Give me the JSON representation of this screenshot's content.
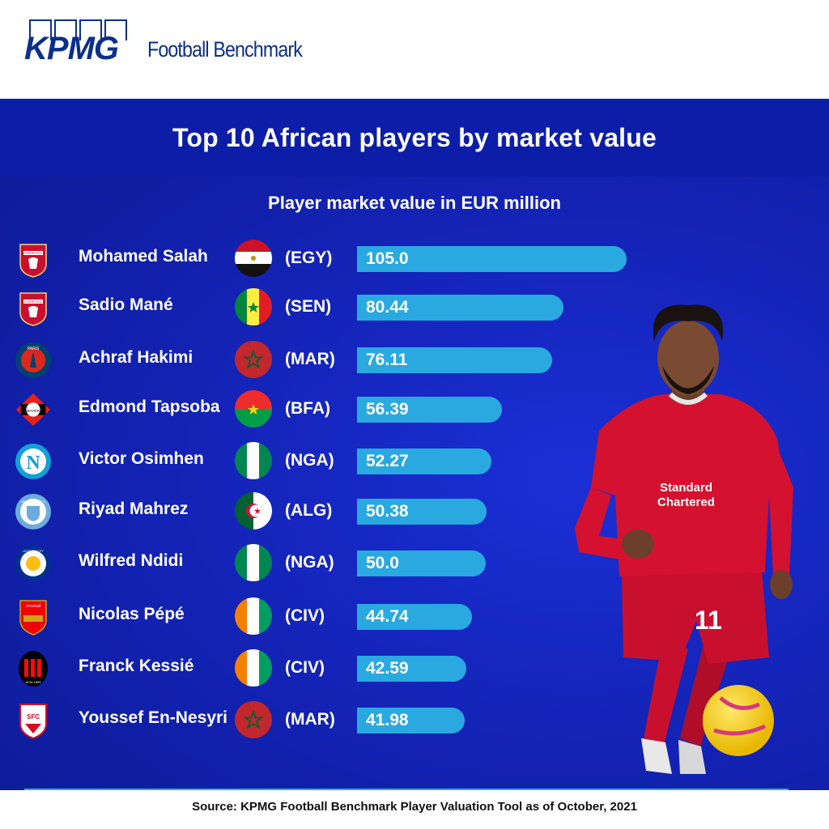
{
  "header": {
    "logo_text": "KPMG",
    "brand_sub": "Football Benchmark"
  },
  "chart_data": {
    "type": "bar",
    "title": "Top 10 African players by market value",
    "subtitle": "Player market value in EUR million",
    "categories": [
      "Mohamed Salah",
      "Sadio Mané",
      "Achraf Hakimi",
      "Edmond Tapsoba",
      "Victor Osimhen",
      "Riyad Mahrez",
      "Wilfred Ndidi",
      "Nicolas Pépé",
      "Franck Kessié",
      "Youssef En-Nesyri"
    ],
    "countries": [
      "(EGY)",
      "(SEN)",
      "(MAR)",
      "(BFA)",
      "(NGA)",
      "(ALG)",
      "(NGA)",
      "(CIV)",
      "(CIV)",
      "(MAR)"
    ],
    "values": [
      105.0,
      80.44,
      76.11,
      56.39,
      52.27,
      50.38,
      50.0,
      44.74,
      42.59,
      41.98
    ],
    "value_labels": [
      "105.0",
      "80.44",
      "76.11",
      "56.39",
      "52.27",
      "50.38",
      "50.0",
      "44.74",
      "42.59",
      "41.98"
    ],
    "clubs": [
      "liverpool",
      "liverpool",
      "psg",
      "leverkusen",
      "napoli",
      "man-city",
      "leicester",
      "arsenal",
      "ac-milan",
      "sevilla"
    ],
    "bar_color": "#29a9e0",
    "xlim": [
      0,
      105.0
    ]
  },
  "crest_texts": {
    "liverpool": "LIVERPOOL",
    "psg": "PARIS",
    "leverkusen": "BAYER",
    "napoli": "N",
    "man-city": "MANCHESTER CITY",
    "leicester": "LEICESTER CITY",
    "arsenal": "Arsenal",
    "ac-milan": "ACM 1899",
    "sevilla": "SFC"
  },
  "source": "Source: KPMG Football Benchmark Player Valuation Tool as of October, 2021",
  "colors": {
    "panel": "#1424b8",
    "title_band": "#0c1ea8",
    "brand": "#0b2f8a"
  }
}
